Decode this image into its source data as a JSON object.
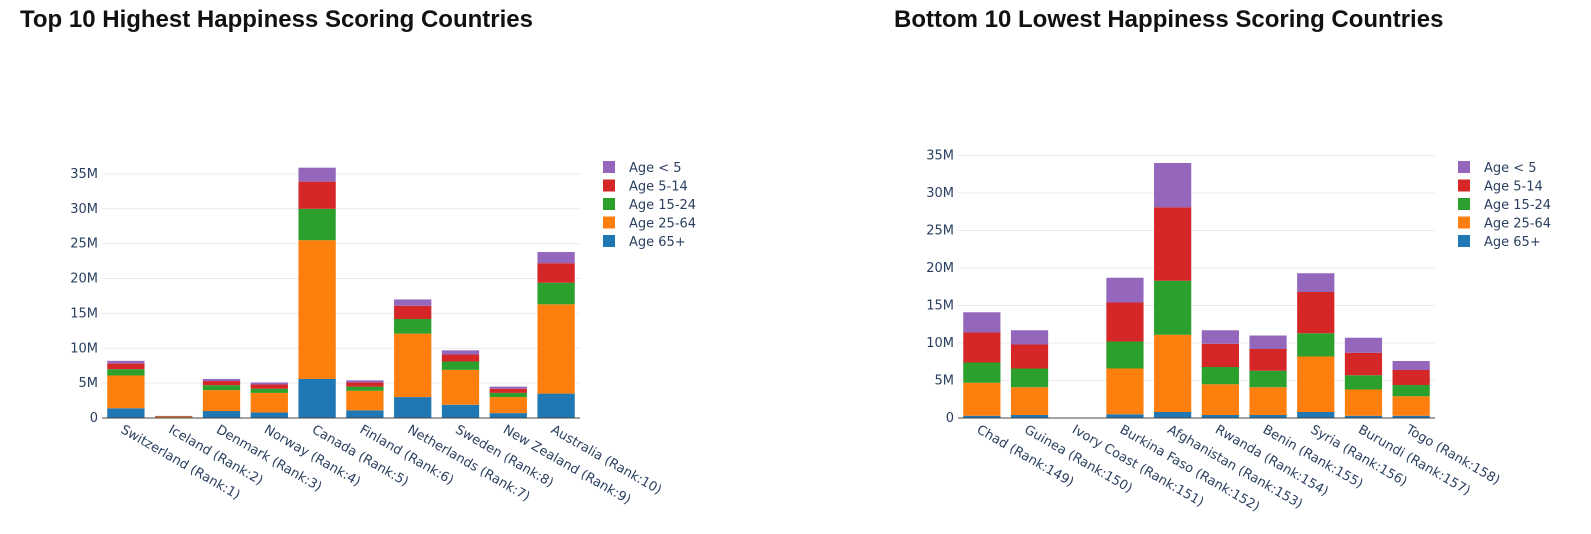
{
  "chart_data": [
    {
      "type": "bar",
      "stacked": true,
      "title": "Top 10 Highest Happiness Scoring Countries",
      "categories": [
        "Switzerland (Rank:1)",
        "Iceland (Rank:2)",
        "Denmark (Rank:3)",
        "Norway (Rank:4)",
        "Canada (Rank:5)",
        "Finland (Rank:6)",
        "Netherlands (Rank:7)",
        "Sweden (Rank:8)",
        "New Zealand (Rank:9)",
        "Australia (Rank:10)"
      ],
      "series": [
        {
          "name": "Age 65+",
          "color": "#1f77b4",
          "values": [
            1.4,
            0.05,
            1.0,
            0.8,
            5.6,
            1.1,
            3.0,
            1.9,
            0.7,
            3.5
          ]
        },
        {
          "name": "Age 25-64",
          "color": "#ff7f0e",
          "values": [
            4.7,
            0.1,
            3.0,
            2.8,
            19.9,
            2.8,
            9.1,
            5.0,
            2.3,
            12.8
          ]
        },
        {
          "name": "Age 15-24",
          "color": "#2ca02c",
          "values": [
            0.9,
            0.05,
            0.7,
            0.6,
            4.5,
            0.6,
            2.1,
            1.2,
            0.6,
            3.1
          ]
        },
        {
          "name": "Age 5-14",
          "color": "#d62728",
          "values": [
            0.8,
            0.08,
            0.6,
            0.6,
            3.9,
            0.6,
            1.9,
            1.0,
            0.6,
            2.8
          ]
        },
        {
          "name": "Age < 5",
          "color": "#9467bd",
          "values": [
            0.4,
            0.02,
            0.3,
            0.3,
            2.0,
            0.3,
            0.9,
            0.6,
            0.3,
            1.6
          ]
        }
      ],
      "ylim": [
        0,
        37
      ],
      "yticks": [
        0,
        5,
        10,
        15,
        20,
        25,
        30,
        35
      ],
      "ytick_labels": [
        "0",
        "5M",
        "10M",
        "15M",
        "20M",
        "25M",
        "30M",
        "35M"
      ],
      "legend": [
        "Age < 5",
        "Age 5-14",
        "Age 15-24",
        "Age 25-64",
        "Age 65+"
      ],
      "legend_position": "top-right"
    },
    {
      "type": "bar",
      "stacked": true,
      "title": "Bottom 10 Lowest Happiness Scoring Countries",
      "categories": [
        "Chad (Rank:149)",
        "Guinea (Rank:150)",
        "Ivory Coast (Rank:151)",
        "Burkina Faso (Rank:152)",
        "Afghanistan (Rank:153)",
        "Rwanda (Rank:154)",
        "Benin (Rank:155)",
        "Syria (Rank:156)",
        "Burundi (Rank:157)",
        "Togo (Rank:158)"
      ],
      "series": [
        {
          "name": "Age 65+",
          "color": "#1f77b4",
          "values": [
            0.3,
            0.4,
            0,
            0.5,
            0.8,
            0.4,
            0.4,
            0.8,
            0.3,
            0.3
          ]
        },
        {
          "name": "Age 25-64",
          "color": "#ff7f0e",
          "values": [
            4.4,
            3.7,
            0,
            6.1,
            10.3,
            4.1,
            3.7,
            7.4,
            3.5,
            2.6
          ]
        },
        {
          "name": "Age 15-24",
          "color": "#2ca02c",
          "values": [
            2.7,
            2.5,
            0,
            3.6,
            7.2,
            2.3,
            2.2,
            3.1,
            1.9,
            1.5
          ]
        },
        {
          "name": "Age 5-14",
          "color": "#d62728",
          "values": [
            4.0,
            3.2,
            0,
            5.2,
            9.8,
            3.1,
            2.9,
            5.5,
            3.0,
            2.0
          ]
        },
        {
          "name": "Age < 5",
          "color": "#9467bd",
          "values": [
            2.7,
            1.9,
            0,
            3.3,
            5.9,
            1.8,
            1.8,
            2.5,
            2.0,
            1.2
          ]
        }
      ],
      "ylim": [
        0,
        36
      ],
      "yticks": [
        0,
        5,
        10,
        15,
        20,
        25,
        30,
        35
      ],
      "ytick_labels": [
        "0",
        "5M",
        "10M",
        "15M",
        "20M",
        "25M",
        "30M",
        "35M"
      ],
      "legend": [
        "Age < 5",
        "Age 5-14",
        "Age 15-24",
        "Age 25-64",
        "Age 65+"
      ],
      "legend_position": "top-right"
    }
  ]
}
